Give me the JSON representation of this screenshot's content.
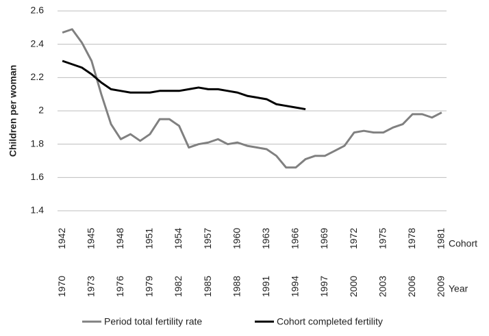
{
  "chart_data": {
    "type": "line",
    "ylabel": "Children per woman",
    "ylim": [
      1.4,
      2.6
    ],
    "yticks": [
      1.4,
      1.6,
      1.8,
      2,
      2.2,
      2.4,
      2.6
    ],
    "grid": true,
    "x_axis_name": "Cohort",
    "categories": [
      "1942",
      null,
      null,
      "1945",
      null,
      null,
      "1948",
      null,
      null,
      "1951",
      null,
      null,
      "1954",
      null,
      null,
      "1957",
      null,
      null,
      "1960",
      null,
      null,
      "1963",
      null,
      null,
      "1966",
      null,
      null,
      "1969",
      null,
      null,
      "1972",
      null,
      null,
      "1975",
      null,
      null,
      "1978",
      null,
      null,
      "1981"
    ],
    "x2_axis_name": "Year",
    "categories2": [
      "1970",
      null,
      null,
      "1973",
      null,
      null,
      "1976",
      null,
      null,
      "1979",
      null,
      null,
      "1982",
      null,
      null,
      "1985",
      null,
      null,
      "1988",
      null,
      null,
      "1991",
      null,
      null,
      "1994",
      null,
      null,
      "1997",
      null,
      null,
      "2000",
      null,
      null,
      "2003",
      null,
      null,
      "2006",
      null,
      null,
      "2009"
    ],
    "series": [
      {
        "name": "Period total fertility rate",
        "color": "#808080",
        "values": [
          2.47,
          2.49,
          2.41,
          2.3,
          2.1,
          1.92,
          1.83,
          1.86,
          1.82,
          1.86,
          1.95,
          1.95,
          1.91,
          1.78,
          1.8,
          1.81,
          1.83,
          1.8,
          1.81,
          1.79,
          1.78,
          1.77,
          1.73,
          1.66,
          1.66,
          1.71,
          1.73,
          1.73,
          1.76,
          1.79,
          1.87,
          1.88,
          1.87,
          1.87,
          1.9,
          1.92,
          1.98,
          1.98,
          1.96,
          1.99
        ]
      },
      {
        "name": "Cohort completed fertility",
        "color": "#000000",
        "values": [
          2.3,
          2.28,
          2.26,
          2.22,
          2.17,
          2.13,
          2.12,
          2.11,
          2.11,
          2.11,
          2.12,
          2.12,
          2.12,
          2.13,
          2.14,
          2.13,
          2.13,
          2.12,
          2.11,
          2.09,
          2.08,
          2.07,
          2.04,
          2.03,
          2.02,
          2.01,
          null,
          null,
          null,
          null,
          null,
          null,
          null,
          null,
          null,
          null,
          null,
          null,
          null,
          null
        ]
      }
    ]
  }
}
